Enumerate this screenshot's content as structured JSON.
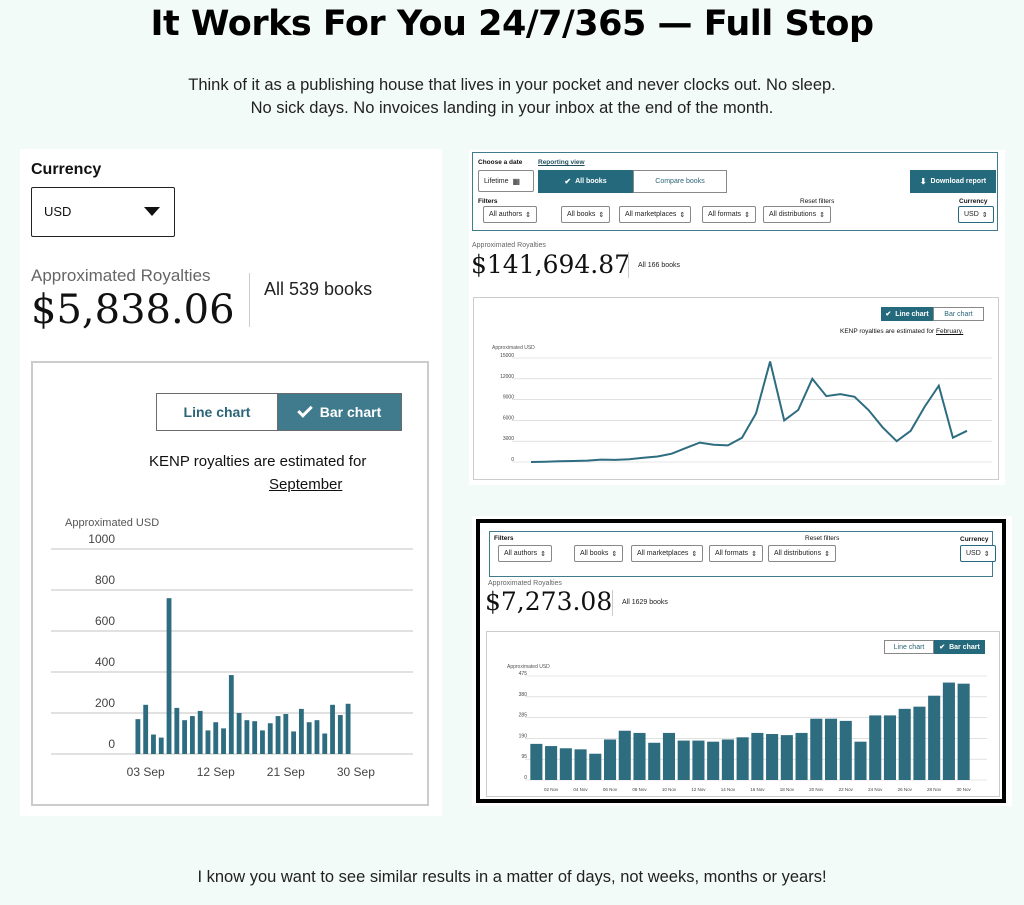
{
  "headline": "It Works For You 24/7/365  — Full Stop",
  "subtext_line1": "Think of it as a publishing house that lives in your pocket and never clocks out. No sleep.",
  "subtext_line2": "No sick days. No invoices landing in your inbox at the end of the month.",
  "footer": "I know you want to see similar results in a matter of days, not weeks, months or years!",
  "colors": {
    "teal": "#246a7c",
    "bar_teal": "#3f7b8c",
    "background": "#f3fbf9"
  },
  "left_panel": {
    "currency_label": "Currency",
    "currency_value": "USD",
    "royalties_label": "Approximated Royalties",
    "royalties_value": "$5,838.06",
    "books_label": "All 539 books",
    "toggle_line": "Line chart",
    "toggle_bar": "Bar chart",
    "kenp_text": "KENP royalties are estimated for",
    "kenp_month": "September",
    "axis_title": "Approximated USD"
  },
  "top_right_panel": {
    "choose_date_label": "Choose a date",
    "date_value": "Lifetime",
    "reporting_view_label": "Reporting view",
    "all_books_button": "All books",
    "compare_books_button": "Compare books",
    "download_button": "Download report",
    "filters_label": "Filters",
    "reset_filters": "Reset filters",
    "currency_label": "Currency",
    "currency_value": "USD",
    "filters": [
      "All authors",
      "All books",
      "All marketplaces",
      "All formats",
      "All distributions"
    ],
    "royalties_label": "Approximated Royalties",
    "royalties_value": "$141,694.87",
    "books_label": "All 166 books",
    "toggle_line": "Line chart",
    "toggle_bar": "Bar chart",
    "kenp_text": "KENP royalties are estimated for",
    "kenp_month": "February.",
    "axis_title": "Approximated USD"
  },
  "bottom_right_panel": {
    "filters_label": "Filters",
    "reset_filters": "Reset filters",
    "currency_label": "Currency",
    "currency_value": "USD",
    "filters": [
      "All authors",
      "All books",
      "All marketplaces",
      "All formats",
      "All distributions"
    ],
    "royalties_label": "Approximated Royalties",
    "royalties_value": "$7,273.08",
    "books_label": "All 1629 books",
    "toggle_line": "Line chart",
    "toggle_bar": "Bar chart",
    "axis_title": "Approximated USD"
  },
  "chart_data": [
    {
      "type": "bar",
      "ylabel": "Approximated USD",
      "ylim": [
        0,
        1000
      ],
      "yticks": [
        0,
        200,
        400,
        600,
        800,
        1000
      ],
      "xticks": [
        "03 Sep",
        "12 Sep",
        "21 Sep",
        "30 Sep"
      ],
      "values": [
        170,
        240,
        95,
        80,
        760,
        225,
        165,
        185,
        210,
        115,
        155,
        125,
        385,
        200,
        165,
        160,
        115,
        150,
        185,
        195,
        110,
        220,
        155,
        165,
        100,
        240,
        190,
        245
      ],
      "grid": true
    },
    {
      "type": "line",
      "ylabel": "Approximated USD",
      "ylim": [
        0,
        15000
      ],
      "yticks": [
        0,
        3000,
        6000,
        9000,
        12000,
        15000
      ],
      "values": [
        0,
        50,
        100,
        150,
        200,
        350,
        300,
        400,
        600,
        800,
        1200,
        2000,
        2800,
        2500,
        2400,
        3500,
        7000,
        14500,
        6000,
        7500,
        12000,
        9500,
        9800,
        9400,
        7500,
        5000,
        3000,
        4500,
        8000,
        11000,
        3500,
        4500
      ],
      "grid": true
    },
    {
      "type": "bar",
      "ylabel": "Approximated USD",
      "ylim": [
        0,
        475
      ],
      "yticks": [
        0,
        95,
        190,
        285,
        380,
        475
      ],
      "xticks": [
        "02 Nov",
        "04 Nov",
        "06 Nov",
        "08 Nov",
        "10 Nov",
        "12 Nov",
        "14 Nov",
        "16 Nov",
        "18 Nov",
        "20 Nov",
        "22 Nov",
        "24 Nov",
        "26 Nov",
        "28 Nov",
        "30 Nov"
      ],
      "values": [
        165,
        155,
        145,
        140,
        120,
        185,
        225,
        215,
        170,
        215,
        180,
        180,
        175,
        185,
        195,
        215,
        210,
        205,
        215,
        280,
        280,
        270,
        175,
        295,
        295,
        325,
        335,
        385,
        445,
        440
      ],
      "grid": true
    }
  ]
}
